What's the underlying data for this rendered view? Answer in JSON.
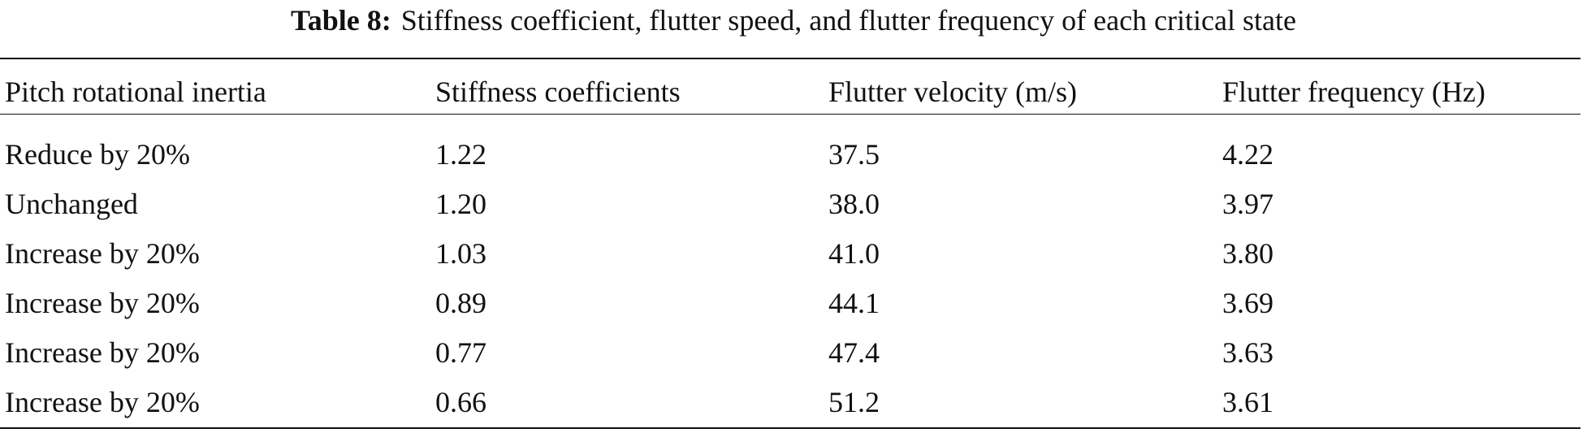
{
  "table": {
    "label": "Table 8:",
    "title": "Stiffness coefficient, flutter speed, and flutter frequency of each critical state",
    "header": [
      "Pitch rotational inertia",
      "Stiffness coefficients",
      "Flutter velocity (m/s)",
      "Flutter frequency (Hz)"
    ],
    "rows": [
      [
        "Reduce by 20%",
        "1.22",
        "37.5",
        "4.22"
      ],
      [
        "Unchanged",
        "1.20",
        "38.0",
        "3.97"
      ],
      [
        "Increase by 20%",
        "1.03",
        "41.0",
        "3.80"
      ],
      [
        "Increase by 20%",
        "0.89",
        "44.1",
        "3.69"
      ],
      [
        "Increase by 20%",
        "0.77",
        "47.4",
        "3.63"
      ],
      [
        "Increase by 20%",
        "0.66",
        "51.2",
        "3.61"
      ]
    ]
  }
}
